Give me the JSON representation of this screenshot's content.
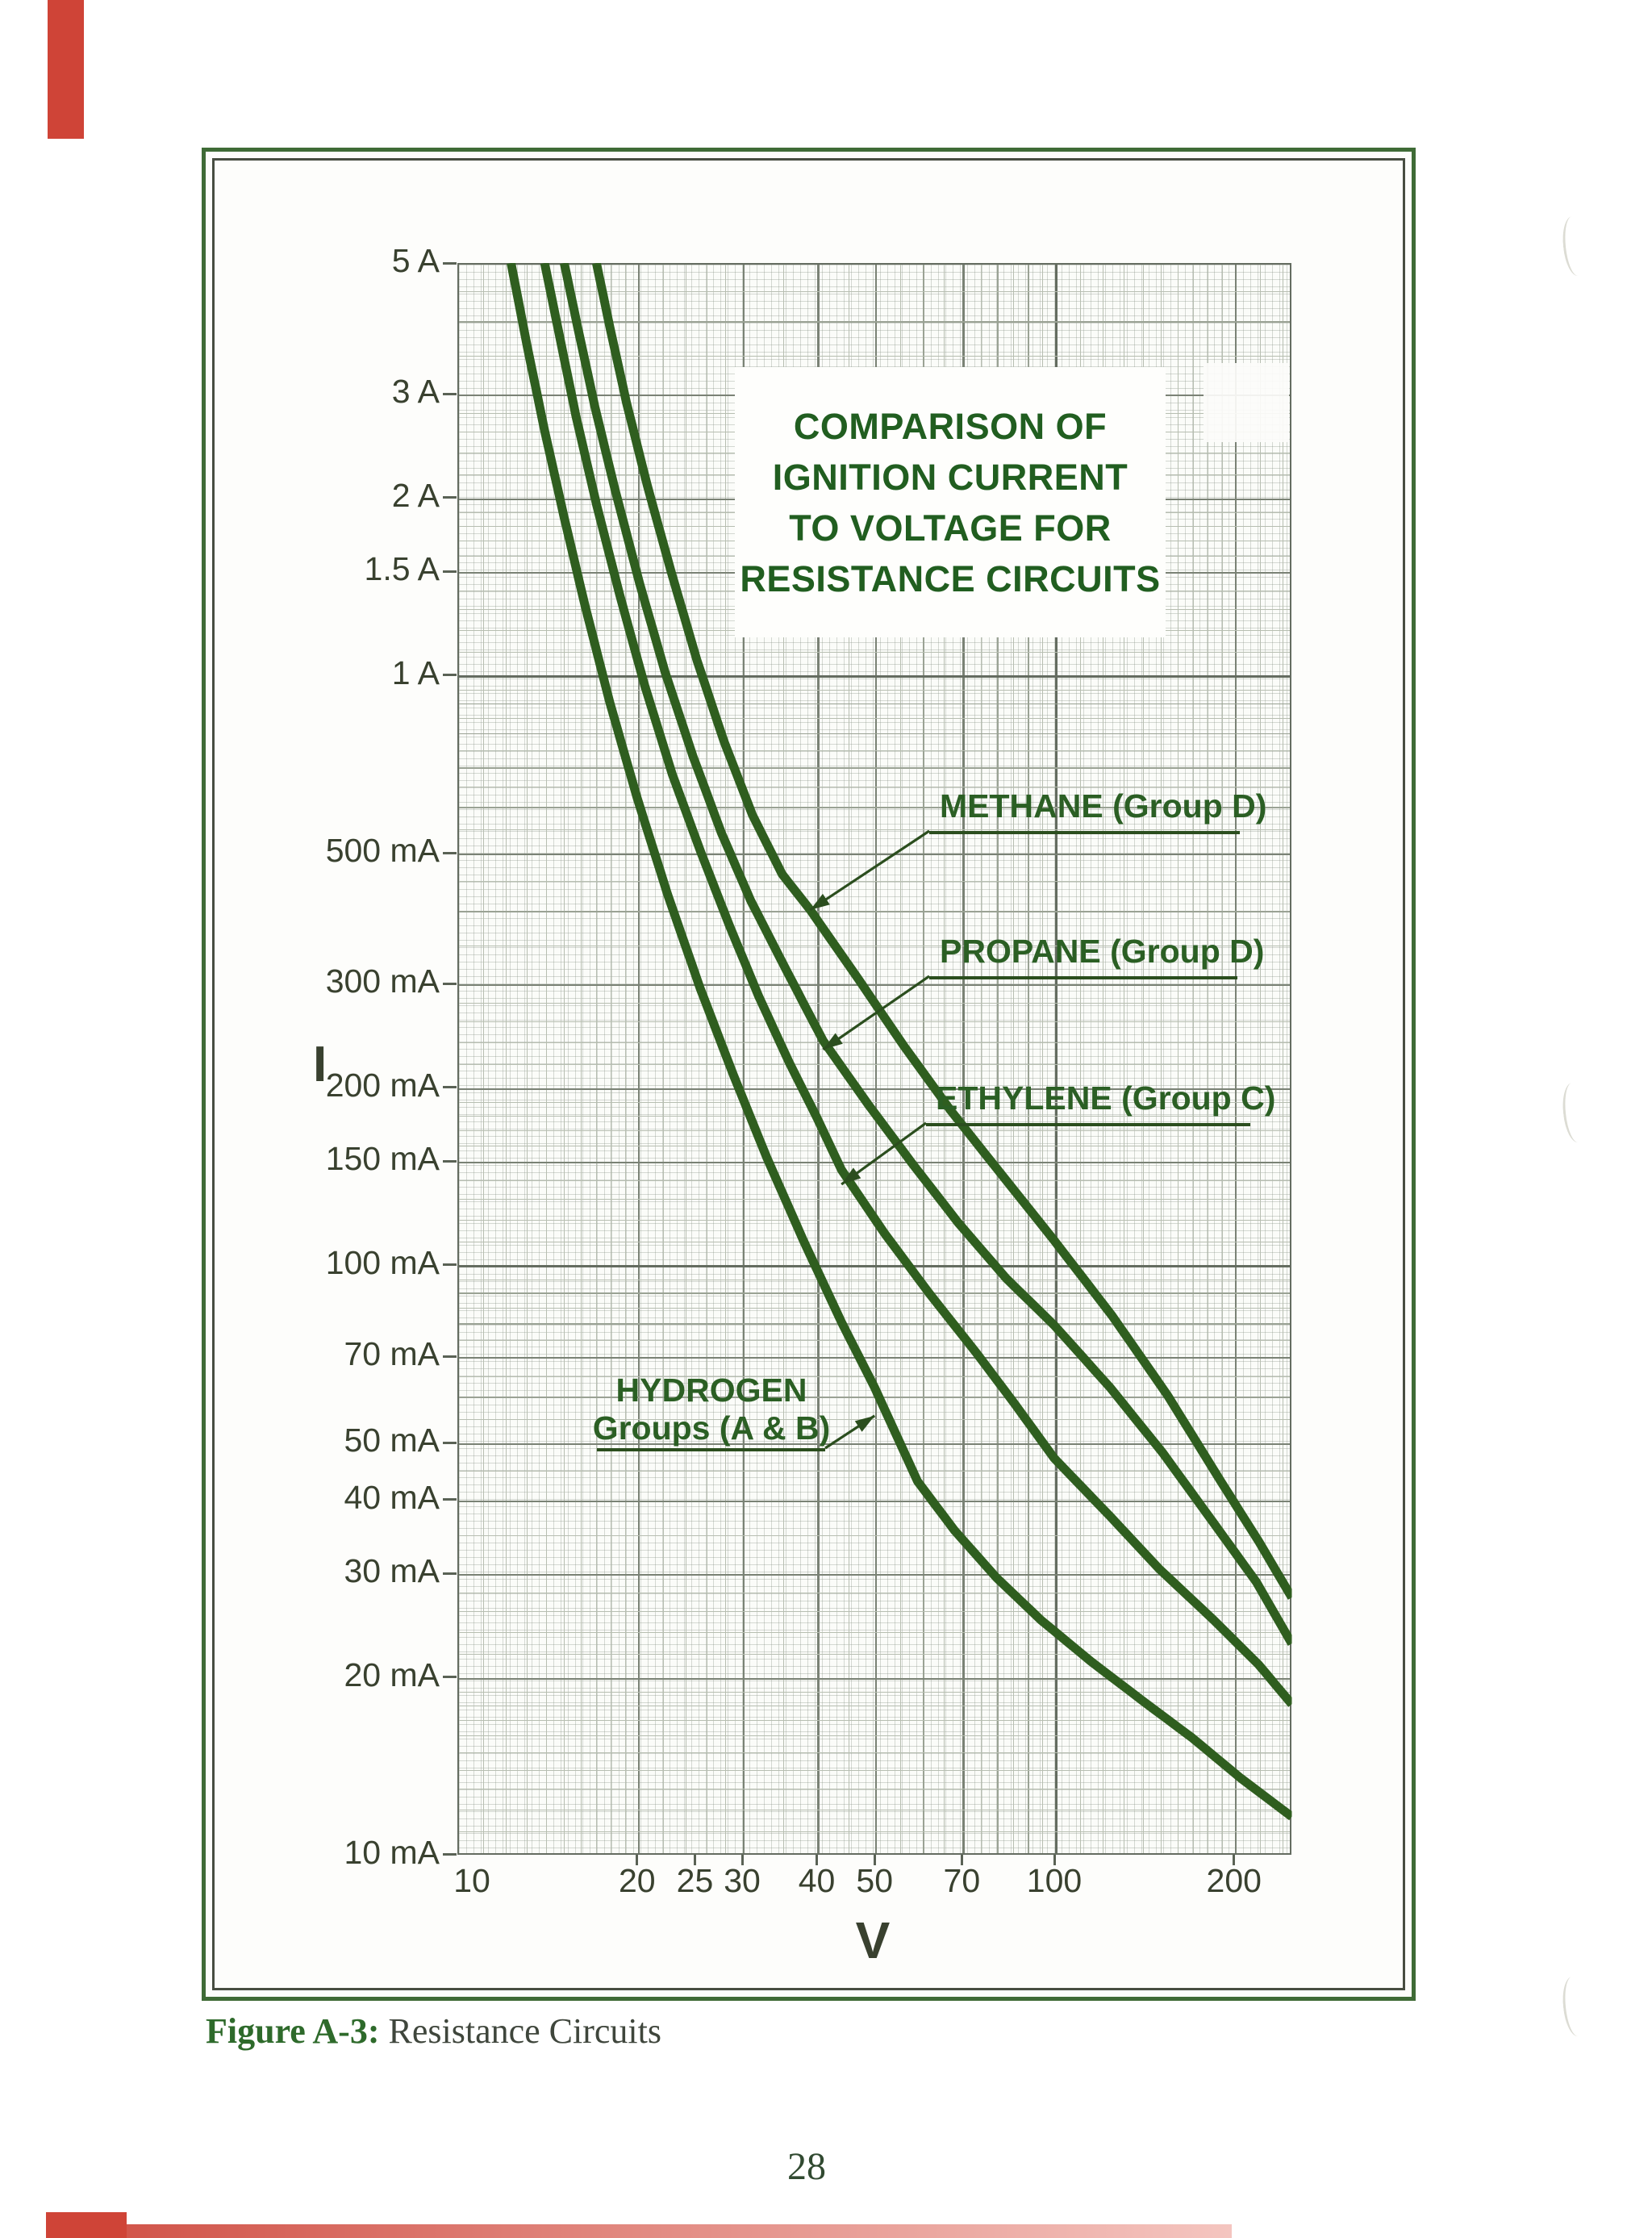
{
  "figure": {
    "title_lines": [
      "COMPARISON OF",
      "IGNITION CURRENT",
      "TO VOLTAGE FOR",
      "RESISTANCE CIRCUITS"
    ],
    "caption_prefix": "Figure A-3:",
    "caption_text": " Resistance Circuits",
    "page_number": "28"
  },
  "axes": {
    "x": {
      "title": "V",
      "scale": "log",
      "min": 10,
      "max": 250,
      "ticks": [
        {
          "v": 10,
          "label": "10"
        },
        {
          "v": 20,
          "label": "20"
        },
        {
          "v": 25,
          "label": "25"
        },
        {
          "v": 30,
          "label": "30"
        },
        {
          "v": 40,
          "label": "40"
        },
        {
          "v": 50,
          "label": "50"
        },
        {
          "v": 70,
          "label": "70"
        },
        {
          "v": 100,
          "label": "100"
        },
        {
          "v": 200,
          "label": "200"
        }
      ]
    },
    "y": {
      "title": "I",
      "scale": "log",
      "min": 10,
      "max": 5000,
      "ticks": [
        {
          "v": 5000,
          "label": "5 A"
        },
        {
          "v": 3000,
          "label": "3 A"
        },
        {
          "v": 2000,
          "label": "2 A"
        },
        {
          "v": 1500,
          "label": "1.5 A"
        },
        {
          "v": 1000,
          "label": "1 A"
        },
        {
          "v": 500,
          "label": "500 mA"
        },
        {
          "v": 300,
          "label": "300 mA"
        },
        {
          "v": 200,
          "label": "200 mA"
        },
        {
          "v": 150,
          "label": "150 mA"
        },
        {
          "v": 100,
          "label": "100 mA"
        },
        {
          "v": 70,
          "label": "70 mA"
        },
        {
          "v": 50,
          "label": "50 mA"
        },
        {
          "v": 40,
          "label": "40 mA"
        },
        {
          "v": 30,
          "label": "30 mA"
        },
        {
          "v": 20,
          "label": "20 mA"
        },
        {
          "v": 10,
          "label": "10 mA"
        }
      ]
    }
  },
  "chart_data": {
    "type": "line",
    "title": "COMPARISON OF IGNITION CURRENT TO VOLTAGE FOR RESISTANCE CIRCUITS",
    "xlabel": "V (volts)",
    "ylabel": "I (ignition current, mA)",
    "x_scale": "log",
    "y_scale": "log",
    "xlim": [
      10,
      250
    ],
    "ylim": [
      10,
      5000
    ],
    "grid": true,
    "series": [
      {
        "name": "METHANE (Group D)",
        "points": [
          [
            17.1,
            5000
          ],
          [
            18,
            3900
          ],
          [
            19.2,
            2900
          ],
          [
            20.8,
            2100
          ],
          [
            22.8,
            1500
          ],
          [
            25.2,
            1060
          ],
          [
            28,
            770
          ],
          [
            31.2,
            580
          ],
          [
            35,
            460
          ],
          [
            39,
            400
          ],
          [
            47,
            305
          ],
          [
            56,
            235
          ],
          [
            67,
            183
          ],
          [
            80,
            146
          ],
          [
            100,
            110
          ],
          [
            125,
            82
          ],
          [
            155,
            60
          ],
          [
            190,
            43
          ],
          [
            220,
            34
          ],
          [
            250,
            27.3
          ]
        ]
      },
      {
        "name": "PROPANE (Group D)",
        "points": [
          [
            15.1,
            5000
          ],
          [
            15.9,
            3900
          ],
          [
            17,
            2850
          ],
          [
            18.4,
            2050
          ],
          [
            20.2,
            1430
          ],
          [
            22.3,
            1010
          ],
          [
            24.8,
            730
          ],
          [
            27.7,
            540
          ],
          [
            31,
            415
          ],
          [
            34.8,
            330
          ],
          [
            38,
            278
          ],
          [
            41,
            240
          ],
          [
            49,
            186
          ],
          [
            58,
            148
          ],
          [
            69,
            118
          ],
          [
            83,
            95
          ],
          [
            100,
            79
          ],
          [
            124,
            62
          ],
          [
            152,
            48
          ],
          [
            185,
            36.5
          ],
          [
            218,
            29
          ],
          [
            250,
            22.8
          ]
        ]
      },
      {
        "name": "ETHYLENE (Group C)",
        "points": [
          [
            14,
            5000
          ],
          [
            14.8,
            3800
          ],
          [
            15.8,
            2750
          ],
          [
            17.1,
            1950
          ],
          [
            18.7,
            1370
          ],
          [
            20.6,
            960
          ],
          [
            22.9,
            680
          ],
          [
            25.6,
            500
          ],
          [
            28.6,
            375
          ],
          [
            32,
            285
          ],
          [
            36,
            220
          ],
          [
            40,
            178
          ],
          [
            44,
            145
          ],
          [
            52,
            113
          ],
          [
            62,
            89
          ],
          [
            74,
            71
          ],
          [
            86,
            58
          ],
          [
            100,
            47
          ],
          [
            124,
            37.5
          ],
          [
            150,
            30.5
          ],
          [
            185,
            25
          ],
          [
            220,
            21
          ],
          [
            250,
            18
          ]
        ]
      },
      {
        "name": "HYDROGEN Groups (A & B)",
        "points": [
          [
            12.3,
            5000
          ],
          [
            13.1,
            3600
          ],
          [
            14,
            2600
          ],
          [
            15.1,
            1850
          ],
          [
            16.4,
            1300
          ],
          [
            18,
            900
          ],
          [
            20,
            620
          ],
          [
            22.5,
            425
          ],
          [
            25.5,
            295
          ],
          [
            29,
            210
          ],
          [
            33,
            152
          ],
          [
            38,
            110
          ],
          [
            44,
            80
          ],
          [
            50,
            62
          ],
          [
            59,
            43
          ],
          [
            68,
            35.5
          ],
          [
            80,
            29.5
          ],
          [
            95,
            25
          ],
          [
            115,
            21.3
          ],
          [
            140,
            18.3
          ],
          [
            170,
            15.8
          ],
          [
            205,
            13.5
          ],
          [
            250,
            11.6
          ]
        ]
      }
    ]
  },
  "annotations": [
    {
      "id": "methane",
      "label": "METHANE (Group D)",
      "target_v": 39,
      "target_i_ma": 400
    },
    {
      "id": "propane",
      "label": "PROPANE (Group D)",
      "target_v": 41,
      "target_i_ma": 232
    },
    {
      "id": "ethylene",
      "label": "ETHYLENE (Group C)",
      "target_v": 44,
      "target_i_ma": 137
    },
    {
      "id": "hydrogen",
      "label": "HYDROGEN",
      "label2": "Groups (A & B)",
      "target_v": 50,
      "target_i_ma": 55.5
    }
  ],
  "colors": {
    "curve": "#2f5e1f",
    "leader": "#2b4e1e",
    "title_text": "#215e20",
    "label_text": "#2b5f24",
    "frame": "#3f6b36",
    "axis_text": "#39412f",
    "red_edge": "#cf4437"
  }
}
